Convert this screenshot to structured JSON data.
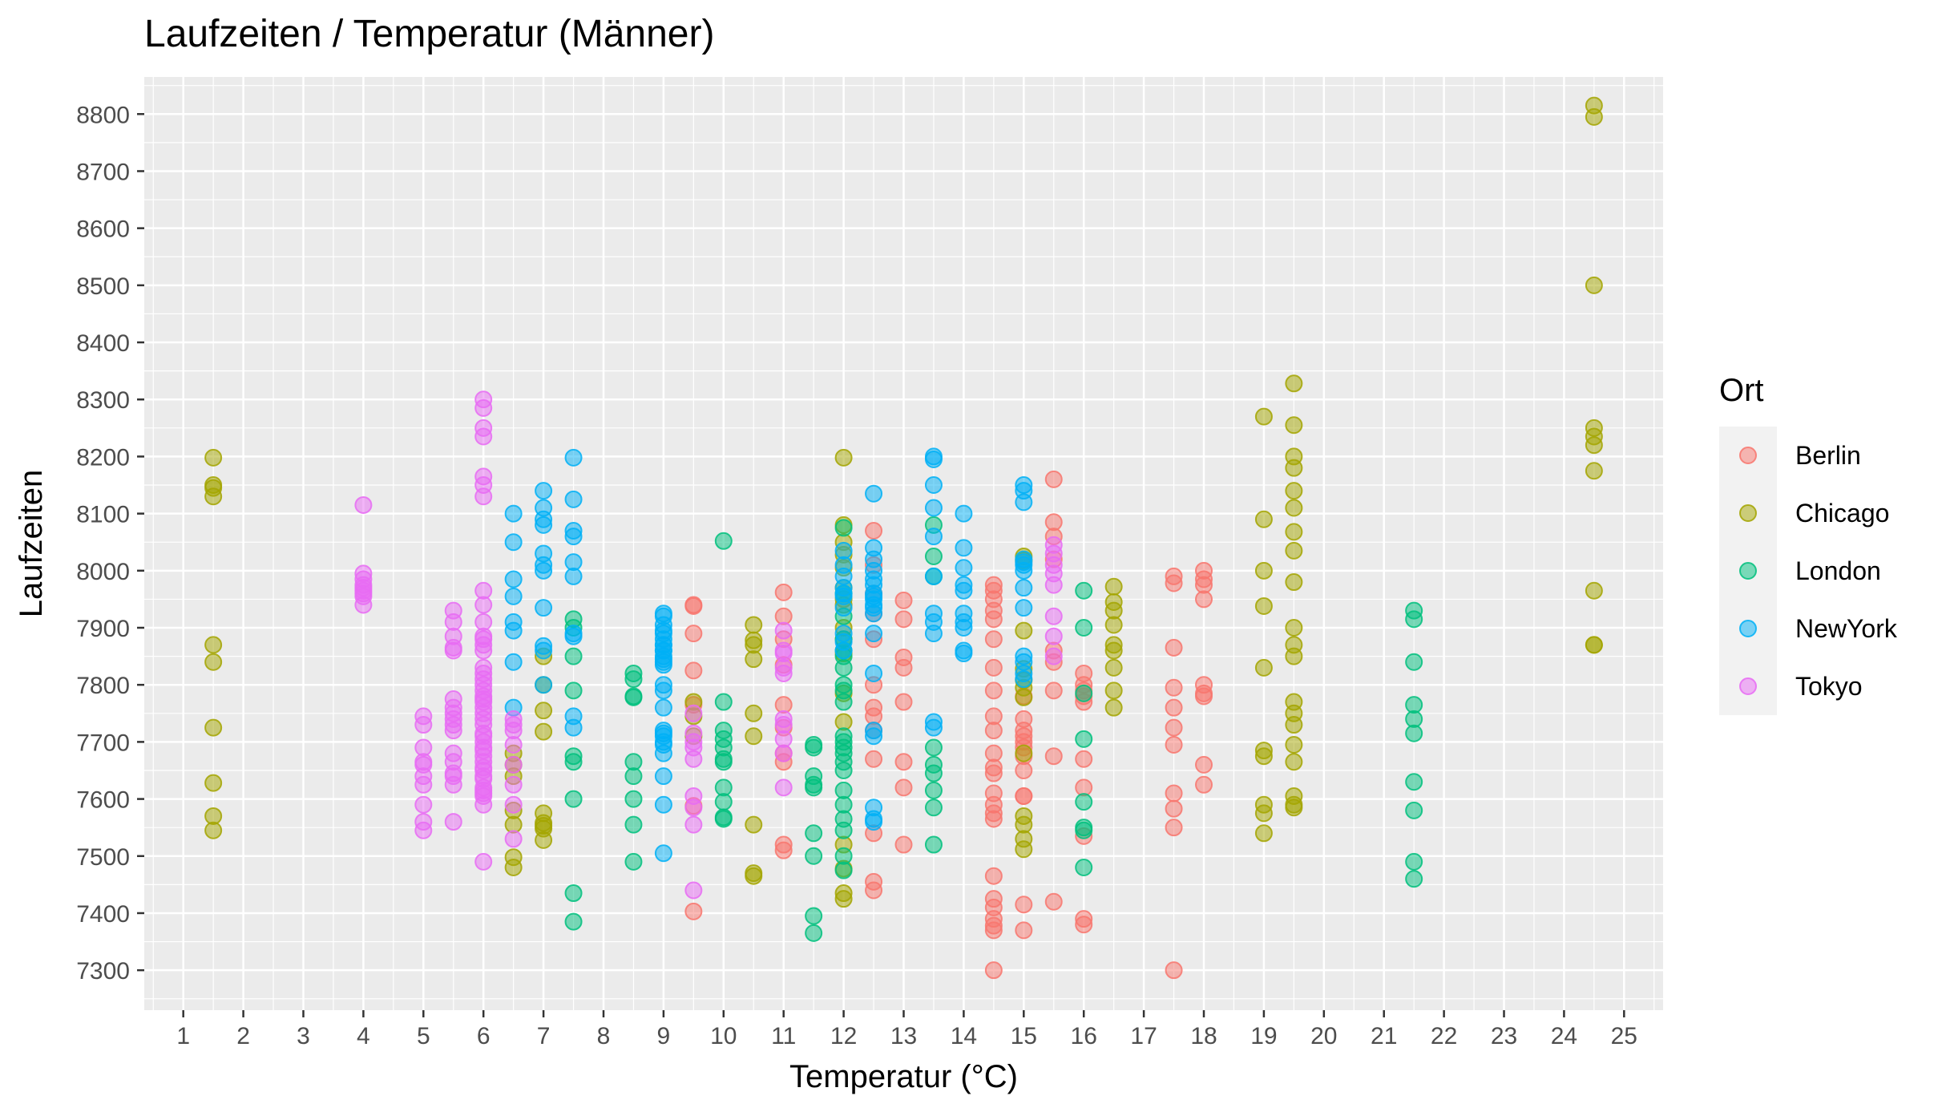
{
  "chart_data": {
    "type": "scatter",
    "title": "Laufzeiten / Temperatur (Männer)",
    "xlabel": "Temperatur (°C)",
    "ylabel": "Laufzeiten",
    "xlim": [
      0.35,
      25.65
    ],
    "ylim": [
      7230,
      8865
    ],
    "x_ticks": [
      1,
      2,
      3,
      4,
      5,
      6,
      7,
      8,
      9,
      10,
      11,
      12,
      13,
      14,
      15,
      16,
      17,
      18,
      19,
      20,
      21,
      22,
      23,
      24,
      25
    ],
    "y_ticks": [
      7300,
      7400,
      7500,
      7600,
      7700,
      7800,
      7900,
      8000,
      8100,
      8200,
      8300,
      8400,
      8500,
      8600,
      8700,
      8800
    ],
    "grid": true,
    "background": "#EBEBEB",
    "point_alpha": 0.5,
    "legend": {
      "title": "Ort",
      "position": "right",
      "entries": [
        {
          "name": "Berlin",
          "color": "#F8766D"
        },
        {
          "name": "Chicago",
          "color": "#A3A500"
        },
        {
          "name": "London",
          "color": "#00BF7D"
        },
        {
          "name": "NewYork",
          "color": "#00B0F6"
        },
        {
          "name": "Tokyo",
          "color": "#E76BF3"
        }
      ]
    },
    "series": [
      {
        "name": "Berlin",
        "x": [
          9.5,
          9.5,
          9.5,
          9.5,
          9.5,
          9.5,
          9.5,
          11,
          11,
          11,
          11,
          11,
          11,
          11,
          11,
          11,
          11,
          12.5,
          12.5,
          12.5,
          12.5,
          12.5,
          12.5,
          12.5,
          12.5,
          12.5,
          12.5,
          12.5,
          12.5,
          12.5,
          13,
          13,
          13,
          13,
          13,
          13,
          13,
          13,
          14.5,
          14.5,
          14.5,
          14.5,
          14.5,
          14.5,
          14.5,
          14.5,
          14.5,
          14.5,
          14.5,
          14.5,
          14.5,
          14.5,
          14.5,
          14.5,
          14.5,
          14.5,
          14.5,
          14.5,
          14.5,
          14.5,
          14.5,
          14.5,
          15,
          15,
          15,
          15,
          15,
          15,
          15,
          15,
          15,
          15,
          15,
          15,
          15.5,
          15.5,
          15.5,
          15.5,
          15.5,
          15.5,
          15.5,
          15.5,
          15.5,
          16,
          16,
          16,
          16,
          16,
          16,
          16,
          16,
          16,
          16,
          17.5,
          17.5,
          17.5,
          17.5,
          17.5,
          17.5,
          17.5,
          17.5,
          17.5,
          17.5,
          17.5,
          18,
          18,
          18,
          18,
          18,
          18,
          18,
          18,
          18
        ],
        "y": [
          7940,
          7938,
          7890,
          7825,
          7765,
          7588,
          7403,
          7962,
          7920,
          7880,
          7835,
          7765,
          7725,
          7680,
          7665,
          7520,
          7510,
          8070,
          8010,
          7960,
          7925,
          7880,
          7800,
          7760,
          7745,
          7720,
          7670,
          7540,
          7455,
          7440,
          7948,
          7915,
          7848,
          7830,
          7770,
          7665,
          7620,
          7520,
          7975,
          7965,
          7950,
          7930,
          7915,
          7880,
          7830,
          7790,
          7745,
          7720,
          7680,
          7655,
          7645,
          7610,
          7590,
          7575,
          7565,
          7465,
          7425,
          7410,
          7390,
          7378,
          7370,
          7300,
          7780,
          7740,
          7720,
          7710,
          7700,
          7690,
          7675,
          7650,
          7605,
          7605,
          7415,
          7370,
          8160,
          8085,
          8060,
          8020,
          7860,
          7840,
          7790,
          7675,
          7420,
          7820,
          7800,
          7790,
          7780,
          7770,
          7670,
          7620,
          7535,
          7390,
          7380,
          7990,
          7978,
          7865,
          7795,
          7760,
          7725,
          7695,
          7610,
          7583,
          7550,
          7300,
          8000,
          7985,
          7975,
          7950,
          7800,
          7785,
          7780,
          7660,
          7625
        ]
      },
      {
        "name": "Chicago",
        "x": [
          1.5,
          1.5,
          1.5,
          1.5,
          1.5,
          1.5,
          1.5,
          1.5,
          1.5,
          1.5,
          6.5,
          6.5,
          6.5,
          6.5,
          6.5,
          6.5,
          6.5,
          7,
          7,
          7,
          7,
          7,
          7,
          7,
          7,
          7,
          9.5,
          9.5,
          9.5,
          10.5,
          10.5,
          10.5,
          10.5,
          10.5,
          10.5,
          10.5,
          10.5,
          10.5,
          12,
          12,
          12,
          12,
          12,
          12,
          12,
          12,
          12,
          12,
          12,
          12,
          12,
          12,
          12,
          12,
          12,
          15,
          15,
          15,
          15,
          15,
          15,
          15,
          15,
          15,
          15,
          15,
          15,
          16.5,
          16.5,
          16.5,
          16.5,
          16.5,
          16.5,
          16.5,
          16.5,
          16.5,
          19,
          19,
          19,
          19,
          19,
          19,
          19,
          19,
          19,
          19,
          19.5,
          19.5,
          19.5,
          19.5,
          19.5,
          19.5,
          19.5,
          19.5,
          19.5,
          19.5,
          19.5,
          19.5,
          19.5,
          19.5,
          19.5,
          19.5,
          19.5,
          19.5,
          19.5,
          19.5,
          24.5,
          24.5,
          24.5,
          24.5,
          24.5,
          24.5,
          24.5,
          24.5,
          24.5,
          24.5
        ],
        "y": [
          8198,
          8150,
          8145,
          8130,
          7870,
          7840,
          7725,
          7628,
          7570,
          7545,
          7680,
          7660,
          7640,
          7580,
          7555,
          7498,
          7480,
          7850,
          7800,
          7755,
          7718,
          7575,
          7558,
          7553,
          7548,
          7528,
          7770,
          7745,
          7710,
          7905,
          7878,
          7870,
          7845,
          7750,
          7710,
          7555,
          7470,
          7465,
          8198,
          8080,
          8050,
          8028,
          8005,
          7970,
          7950,
          7940,
          7900,
          7880,
          7855,
          7735,
          7520,
          7478,
          7435,
          7425,
          7785,
          8025,
          8018,
          7895,
          7828,
          7808,
          7795,
          7778,
          7680,
          7570,
          7555,
          7530,
          7512,
          7972,
          7945,
          7930,
          7905,
          7870,
          7860,
          7830,
          7790,
          7760,
          8270,
          8090,
          8000,
          7938,
          7830,
          7685,
          7675,
          7590,
          7575,
          7540,
          8328,
          8255,
          8200,
          8180,
          8140,
          8110,
          8068,
          8035,
          7980,
          7900,
          7870,
          7850,
          7770,
          7750,
          7730,
          7695,
          7665,
          7605,
          7590,
          7585,
          8815,
          8795,
          8500,
          8250,
          8235,
          8220,
          8175,
          7965,
          7870,
          7870
        ]
      },
      {
        "name": "London",
        "x": [
          7.5,
          7.5,
          7.5,
          7.5,
          7.5,
          7.5,
          7.5,
          7.5,
          7.5,
          8.5,
          8.5,
          8.5,
          8.5,
          8.5,
          8.5,
          8.5,
          8.5,
          8.5,
          10,
          10,
          10,
          10,
          10,
          10,
          10,
          10,
          10,
          10,
          10,
          11.5,
          11.5,
          11.5,
          11.5,
          11.5,
          11.5,
          11.5,
          11.5,
          11.5,
          12,
          12,
          12,
          12,
          12,
          12,
          12,
          12,
          12,
          12,
          12,
          12,
          12,
          12,
          12,
          12,
          12,
          12,
          12,
          12,
          12,
          12,
          13.5,
          13.5,
          13.5,
          13.5,
          13.5,
          13.5,
          13.5,
          13.5,
          13.5,
          16,
          16,
          16,
          16,
          16,
          16,
          16,
          16,
          21.5,
          21.5,
          21.5,
          21.5,
          21.5,
          21.5,
          21.5,
          21.5,
          21.5,
          21.5
        ],
        "y": [
          7915,
          7900,
          7850,
          7790,
          7675,
          7665,
          7600,
          7435,
          7385,
          7820,
          7810,
          7780,
          7778,
          7665,
          7640,
          7600,
          7555,
          7490,
          8052,
          7770,
          7720,
          7705,
          7690,
          7670,
          7665,
          7620,
          7595,
          7568,
          7565,
          7695,
          7690,
          7640,
          7625,
          7620,
          7540,
          7500,
          7395,
          7365,
          8075,
          7960,
          7920,
          7880,
          7860,
          7850,
          7830,
          7800,
          7790,
          7770,
          7710,
          7700,
          7690,
          7680,
          7665,
          7650,
          7615,
          7590,
          7565,
          7545,
          7500,
          7475,
          8080,
          8025,
          7990,
          7690,
          7660,
          7645,
          7615,
          7585,
          7520,
          7965,
          7900,
          7785,
          7705,
          7595,
          7550,
          7545,
          7480,
          7930,
          7915,
          7840,
          7765,
          7740,
          7715,
          7630,
          7580,
          7490,
          7460
        ]
      },
      {
        "name": "NewYork",
        "x": [
          6.5,
          6.5,
          6.5,
          6.5,
          6.5,
          6.5,
          6.5,
          6.5,
          7,
          7,
          7,
          7,
          7,
          7,
          7,
          7,
          7,
          7,
          7,
          7.5,
          7.5,
          7.5,
          7.5,
          7.5,
          7.5,
          7.5,
          7.5,
          7.5,
          7.5,
          9,
          9,
          9,
          9,
          9,
          9,
          9,
          9,
          9,
          9,
          9,
          9,
          9,
          9,
          9,
          9,
          9,
          9,
          9,
          9,
          9,
          9,
          9,
          9,
          9,
          9,
          12,
          12,
          12,
          12,
          12,
          12,
          12,
          12,
          12,
          12,
          12.5,
          12.5,
          12.5,
          12.5,
          12.5,
          12.5,
          12.5,
          12.5,
          12.5,
          12.5,
          12.5,
          12.5,
          12.5,
          12.5,
          12.5,
          12.5,
          12.5,
          12.5,
          12.5,
          13.5,
          13.5,
          13.5,
          13.5,
          13.5,
          13.5,
          13.5,
          13.5,
          13.5,
          13.5,
          13.5,
          14,
          14,
          14,
          14,
          14,
          14,
          14,
          14,
          14,
          14,
          15,
          15,
          15,
          15,
          15,
          15,
          15,
          15,
          15,
          15,
          15,
          15,
          15
        ],
        "y": [
          8100,
          8050,
          7985,
          7955,
          7910,
          7895,
          7840,
          7760,
          8140,
          8110,
          8090,
          8080,
          8030,
          8010,
          8000,
          7935,
          7868,
          7860,
          7800,
          8198,
          8125,
          8070,
          8060,
          8015,
          7990,
          7890,
          7885,
          7745,
          7725,
          7925,
          7920,
          7905,
          7895,
          7890,
          7880,
          7870,
          7860,
          7850,
          7845,
          7840,
          7835,
          7800,
          7790,
          7760,
          7720,
          7715,
          7710,
          7700,
          7695,
          7680,
          7640,
          7590,
          7505,
          7870,
          7860,
          8035,
          8010,
          7990,
          7970,
          7960,
          7955,
          7935,
          7890,
          7875,
          7860,
          8135,
          8040,
          8020,
          8000,
          7985,
          7975,
          7960,
          7955,
          7950,
          7940,
          7935,
          7925,
          7890,
          7820,
          7720,
          7710,
          7585,
          7565,
          7560,
          8200,
          8195,
          8150,
          8110,
          8060,
          7990,
          7925,
          7910,
          7890,
          7735,
          7725,
          8100,
          8040,
          8005,
          7975,
          7965,
          7925,
          7910,
          7900,
          7860,
          7855,
          8150,
          8140,
          8120,
          8020,
          8015,
          8010,
          8000,
          7970,
          7935,
          7850,
          7840,
          7820,
          7810
        ]
      },
      {
        "name": "Tokyo",
        "x": [
          4,
          4,
          4,
          4,
          4,
          4,
          4,
          4,
          4,
          5,
          5,
          5,
          5,
          5,
          5,
          5,
          5,
          5,
          5,
          5.5,
          5.5,
          5.5,
          5.5,
          5.5,
          5.5,
          5.5,
          5.5,
          5.5,
          5.5,
          5.5,
          5.5,
          5.5,
          5.5,
          5.5,
          5.5,
          5.5,
          6,
          6,
          6,
          6,
          6,
          6,
          6,
          6,
          6,
          6,
          6,
          6,
          6,
          6,
          6,
          6,
          6,
          6,
          6,
          6,
          6,
          6,
          6,
          6,
          6,
          6,
          6,
          6,
          6,
          6,
          6,
          6,
          6,
          6,
          6,
          6,
          6,
          6,
          6,
          6,
          6,
          6,
          6,
          6.5,
          6.5,
          6.5,
          6.5,
          6.5,
          6.5,
          6.5,
          6.5,
          9.5,
          9.5,
          9.5,
          9.5,
          9.5,
          9.5,
          9.5,
          9.5,
          9.5,
          11,
          11,
          11,
          11,
          11,
          11,
          11,
          11,
          11,
          11,
          15.5,
          15.5,
          15.5,
          15.5,
          15.5,
          15.5,
          15.5,
          15.5
        ],
        "y": [
          8115,
          7995,
          7985,
          7975,
          7970,
          7965,
          7960,
          7955,
          7940,
          7745,
          7730,
          7690,
          7665,
          7660,
          7640,
          7625,
          7590,
          7560,
          7545,
          7930,
          7910,
          7885,
          7865,
          7860,
          7775,
          7760,
          7750,
          7740,
          7730,
          7720,
          7680,
          7665,
          7645,
          7640,
          7625,
          7560,
          8300,
          8285,
          8250,
          8235,
          8165,
          8150,
          8130,
          7965,
          7940,
          7910,
          7885,
          7870,
          7860,
          7830,
          7820,
          7810,
          7800,
          7790,
          7780,
          7775,
          7770,
          7760,
          7750,
          7740,
          7730,
          7715,
          7710,
          7700,
          7690,
          7685,
          7675,
          7665,
          7655,
          7650,
          7640,
          7635,
          7620,
          7615,
          7610,
          7605,
          7590,
          7490,
          7880,
          7740,
          7730,
          7720,
          7695,
          7660,
          7625,
          7590,
          7530,
          7750,
          7715,
          7700,
          7690,
          7670,
          7605,
          7585,
          7555,
          7440,
          7895,
          7860,
          7855,
          7830,
          7820,
          7740,
          7730,
          7705,
          7680,
          7620,
          8045,
          8030,
          8010,
          7995,
          7975,
          7920,
          7885,
          7850
        ]
      }
    ]
  }
}
